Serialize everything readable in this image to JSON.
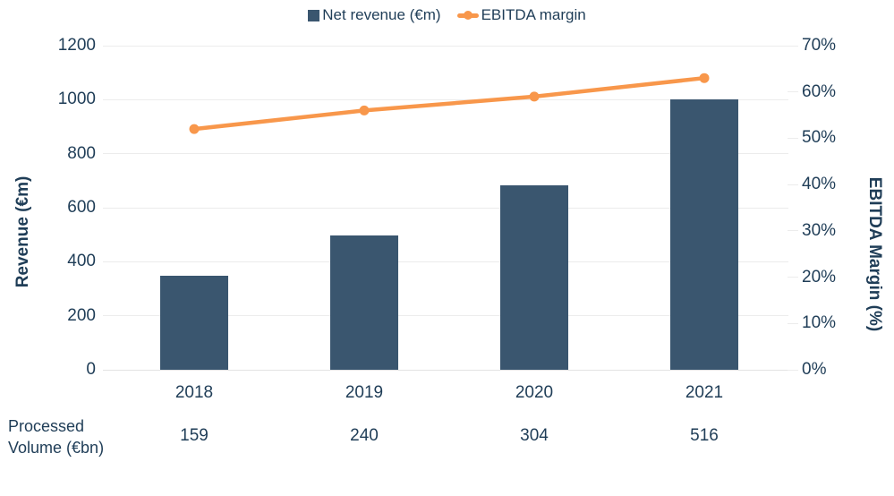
{
  "colors": {
    "bar": "#3A566F",
    "line": "#F8974B",
    "text": "#1F3D57",
    "grid": "#ECECEC",
    "axis_line": "#E3E3E3"
  },
  "legend": {
    "bar_label": "Net revenue (€m)",
    "line_label": "EBITDA margin"
  },
  "chart_data": {
    "type": "bar+line combo",
    "categories": [
      "2018",
      "2019",
      "2020",
      "2021"
    ],
    "series": [
      {
        "name": "Net revenue (€m)",
        "type": "bar",
        "axis": "left",
        "values": [
          349,
          497,
          684,
          1000
        ]
      },
      {
        "name": "EBITDA margin",
        "type": "line",
        "axis": "right",
        "unit": "%",
        "values": [
          52,
          56,
          59,
          63
        ]
      }
    ],
    "left_axis": {
      "label": "Revenue (€m)",
      "min": 0,
      "max": 1200,
      "step": 200,
      "tick_labels": [
        "0",
        "200",
        "400",
        "600",
        "800",
        "1000",
        "1200"
      ]
    },
    "right_axis": {
      "label": "EBITDA Margin (%)",
      "min": 0,
      "max": 70,
      "step": 10,
      "tick_labels": [
        "0%",
        "10%",
        "20%",
        "30%",
        "40%",
        "50%",
        "60%",
        "70%"
      ]
    },
    "grid": "horizontal light gray",
    "legend_position": "top center",
    "footer": {
      "label_lines": [
        "Processed",
        "Volume (€bn)"
      ],
      "values": [
        "159",
        "240",
        "304",
        "516"
      ]
    }
  }
}
